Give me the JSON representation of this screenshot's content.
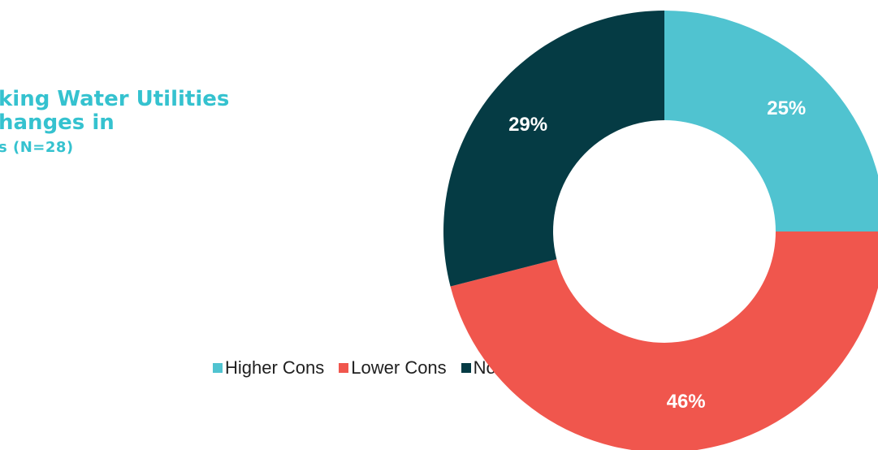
{
  "title_fragment": {
    "line1": "king Water Utilities",
    "line2": "hanges in",
    "line3": "s (N=28)"
  },
  "chart_data": {
    "type": "pie",
    "variant": "donut",
    "categories": [
      "Higher Cons",
      "Lower Cons",
      "No Change"
    ],
    "values": [
      25,
      46,
      29
    ],
    "labels": [
      "25%",
      "46%",
      "29%"
    ],
    "colors": [
      "#50c3d0",
      "#f0564d",
      "#053b44"
    ],
    "legend_position": "left",
    "legend": [
      {
        "label": "Higher Cons",
        "color": "#50c3d0"
      },
      {
        "label": "Lower Cons",
        "color": "#f0564d"
      },
      {
        "label": "No Change",
        "color": "#053b44"
      }
    ]
  }
}
